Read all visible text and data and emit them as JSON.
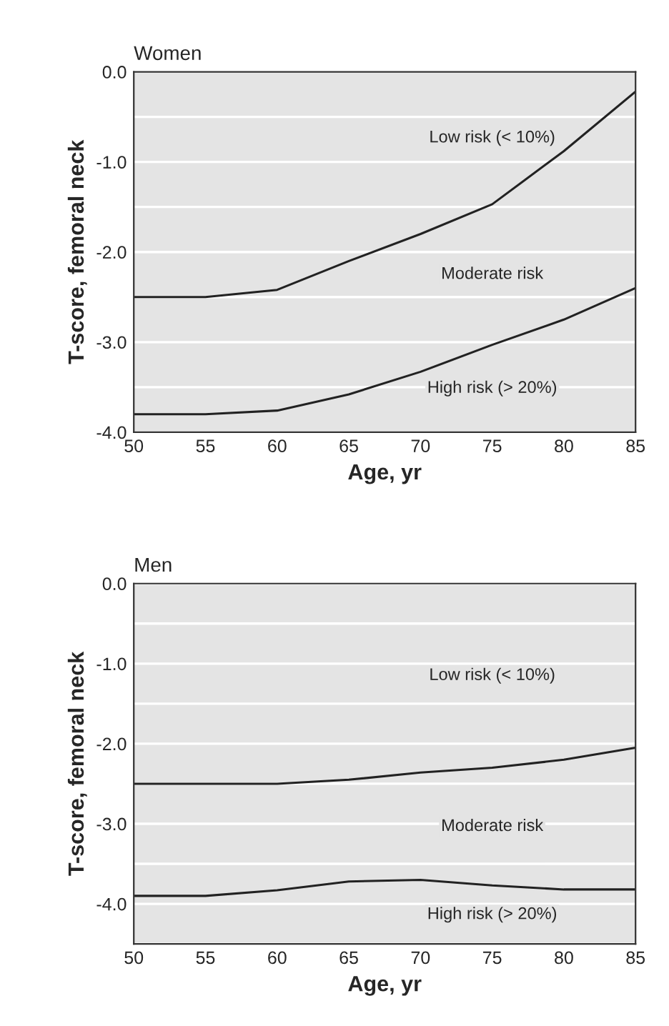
{
  "chart_data": [
    {
      "type": "line",
      "title": "Women",
      "xlabel": "Age, yr",
      "ylabel": "T-score, femoral neck",
      "x": [
        50,
        55,
        60,
        65,
        70,
        75,
        80,
        85
      ],
      "series": [
        {
          "color": "#222222",
          "values": [
            -2.5,
            -2.5,
            -2.42,
            -2.1,
            -1.8,
            -1.47,
            -0.88,
            -0.22
          ]
        },
        {
          "color": "#222222",
          "values": [
            -3.8,
            -3.8,
            -3.76,
            -3.58,
            -3.33,
            -3.03,
            -2.75,
            -2.4
          ]
        }
      ],
      "xlim": [
        50,
        85
      ],
      "xticks": [
        50,
        55,
        60,
        65,
        70,
        75,
        80,
        85
      ],
      "ylim": [
        -4,
        0
      ],
      "yticks": [
        {
          "value": -4,
          "label": "-4.0"
        },
        {
          "value": -3.5,
          "label": null
        },
        {
          "value": -3,
          "label": "-3.0"
        },
        {
          "value": -2.5,
          "label": null
        },
        {
          "value": -2,
          "label": "-2.0"
        },
        {
          "value": -1.5,
          "label": null
        },
        {
          "value": -1,
          "label": "-1.0"
        },
        {
          "value": -0.5,
          "label": null
        },
        {
          "value": 0,
          "label": "0.0"
        }
      ],
      "annotations": [
        "Low risk (< 10%)",
        "Moderate risk",
        "High risk (> 20%)"
      ],
      "grid": "y",
      "line_style": "solid",
      "marker": "none"
    },
    {
      "type": "line",
      "title": "Men",
      "xlabel": "Age, yr",
      "ylabel": "T-score, femoral neck",
      "x": [
        50,
        55,
        60,
        65,
        70,
        75,
        80,
        85
      ],
      "series": [
        {
          "color": "#222222",
          "values": [
            -2.5,
            -2.5,
            -2.5,
            -2.45,
            -2.36,
            -2.3,
            -2.2,
            -2.05
          ]
        },
        {
          "color": "#222222",
          "values": [
            -3.9,
            -3.9,
            -3.83,
            -3.72,
            -3.7,
            -3.77,
            -3.82,
            -3.82
          ]
        }
      ],
      "xlim": [
        50,
        85
      ],
      "xticks": [
        50,
        55,
        60,
        65,
        70,
        75,
        80,
        85
      ],
      "ylim": [
        -4.5,
        0
      ],
      "yticks": [
        {
          "value": -4.5,
          "label": null
        },
        {
          "value": -4,
          "label": "-4.0"
        },
        {
          "value": -3.5,
          "label": null
        },
        {
          "value": -3,
          "label": "-3.0"
        },
        {
          "value": -2.5,
          "label": null
        },
        {
          "value": -2,
          "label": "-2.0"
        },
        {
          "value": -1.5,
          "label": null
        },
        {
          "value": -1,
          "label": "-1.0"
        },
        {
          "value": -0.5,
          "label": null
        },
        {
          "value": 0,
          "label": "0.0"
        }
      ],
      "annotations": [
        "Low risk (< 10%)",
        "Moderate risk",
        "High risk (> 20%)"
      ],
      "grid": "y",
      "line_style": "solid",
      "marker": "none"
    }
  ]
}
